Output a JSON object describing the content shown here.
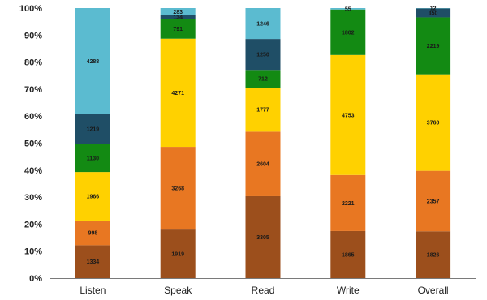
{
  "chart_data": {
    "type": "bar",
    "stacked": true,
    "normalized": true,
    "categories": [
      "Listen",
      "Speak",
      "Read",
      "Write",
      "Overall"
    ],
    "series": [
      {
        "color": "#9c4f1c",
        "values": [
          1334,
          1919,
          3305,
          1865,
          1826
        ]
      },
      {
        "color": "#e87722",
        "values": [
          998,
          3268,
          2604,
          2221,
          2357
        ]
      },
      {
        "color": "#ffd100",
        "values": [
          1966,
          4271,
          1777,
          4753,
          3760
        ]
      },
      {
        "color": "#138a13",
        "values": [
          1130,
          791,
          712,
          1802,
          2219
        ]
      },
      {
        "color": "#1f4e66",
        "values": [
          1219,
          134,
          1250,
          0,
          350
        ]
      },
      {
        "color": "#5bbbd0",
        "values": [
          4288,
          283,
          1246,
          55,
          12
        ]
      }
    ],
    "y_tick_labels": [
      "0%",
      "10%",
      "20%",
      "30%",
      "40%",
      "50%",
      "60%",
      "70%",
      "80%",
      "90%",
      "100%"
    ],
    "ylim": [
      0,
      100
    ],
    "grid": false,
    "legend": "none"
  }
}
